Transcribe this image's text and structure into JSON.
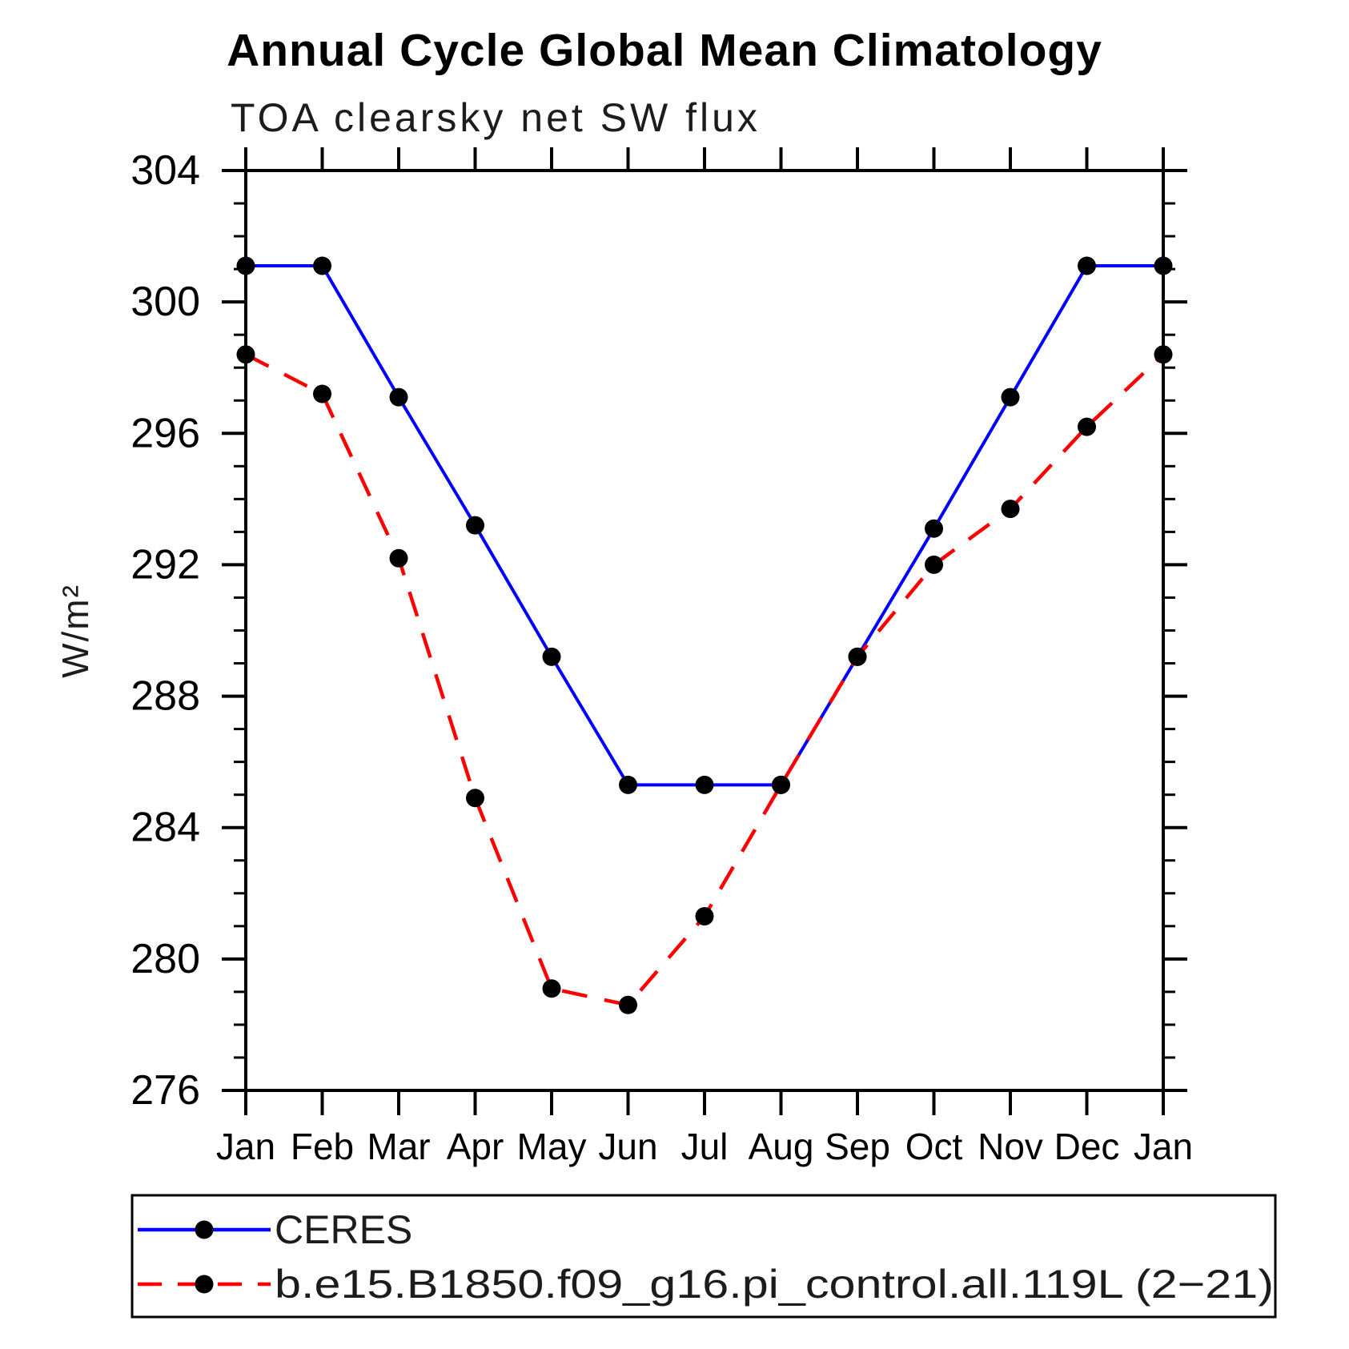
{
  "chart_data": {
    "type": "line",
    "title": "Annual Cycle Global Mean Climatology",
    "subtitle": "TOA clearsky net SW flux",
    "ylabel": "W/m²",
    "xlabel": "",
    "categories": [
      "Jan",
      "Feb",
      "Mar",
      "Apr",
      "May",
      "Jun",
      "Jul",
      "Aug",
      "Sep",
      "Oct",
      "Nov",
      "Dec",
      "Jan"
    ],
    "ylim": [
      276,
      304
    ],
    "ytick_major_step": 4,
    "ytick_minor_step": 1,
    "ytick_labels": [
      "276",
      "280",
      "284",
      "288",
      "292",
      "296",
      "300",
      "304"
    ],
    "grid": false,
    "legend_position": "bottom",
    "axis_color": "#000000",
    "marker_color": "#000000",
    "series": [
      {
        "name": "CERES",
        "color": "#0000ff",
        "line_style": "solid",
        "marker": "filled-circle",
        "values": [
          301.1,
          301.1,
          297.1,
          293.2,
          289.2,
          285.3,
          285.3,
          285.3,
          289.2,
          293.1,
          297.1,
          301.1,
          301.1
        ]
      },
      {
        "name": "b.e15.B1850.f09_g16.pi_control.all.119L (2−21)",
        "color": "#ff0000",
        "line_style": "dashed",
        "marker": "filled-circle",
        "values": [
          298.4,
          297.2,
          292.2,
          284.9,
          279.1,
          278.6,
          281.3,
          285.3,
          289.2,
          292.0,
          293.7,
          296.2,
          298.4
        ]
      }
    ]
  }
}
